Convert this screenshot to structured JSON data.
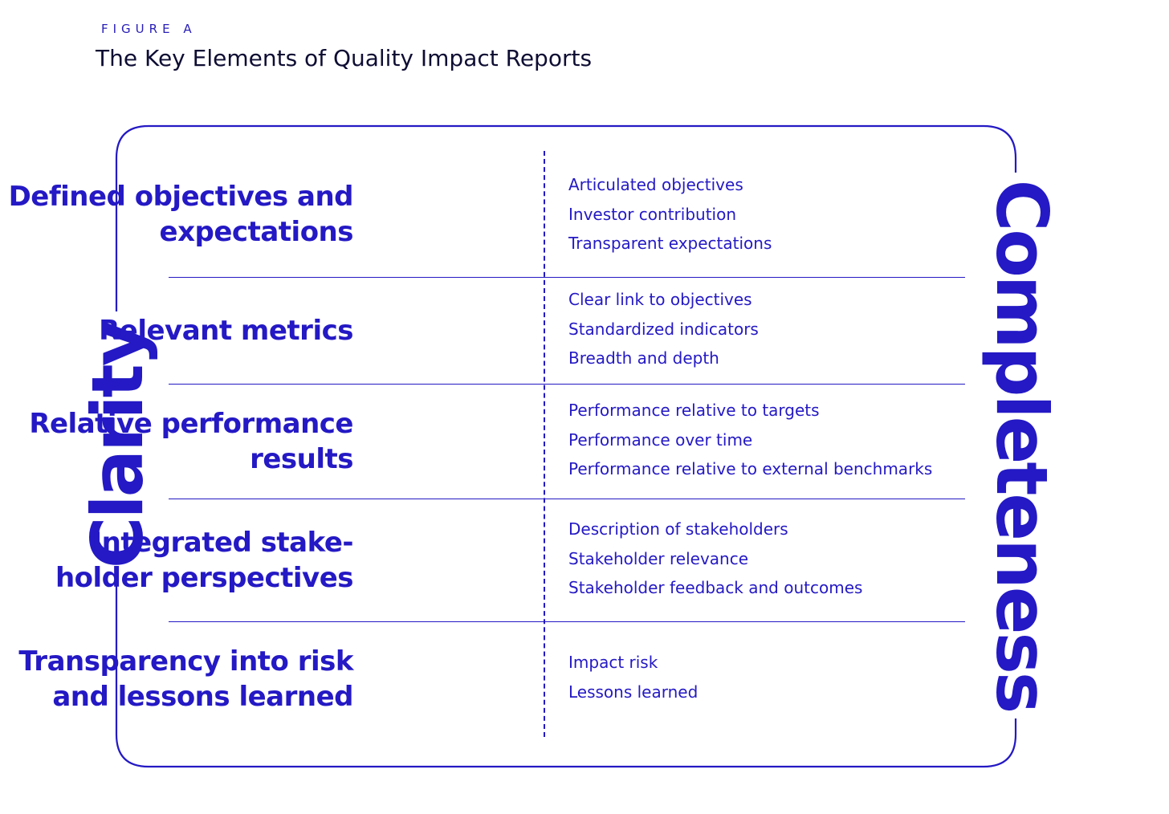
{
  "figure": {
    "label": "FIGURE A",
    "title": "The Key Elements of Quality Impact Reports"
  },
  "axes": {
    "left": "Clarity",
    "right": "Completeness"
  },
  "rows": [
    {
      "heading": "Defined objectives and expectations",
      "items": [
        "Articulated objectives",
        "Investor contribution",
        "Transparent expectations"
      ]
    },
    {
      "heading": "Relevant metrics",
      "items": [
        "Clear link to objectives",
        "Standardized indicators",
        "Breadth and depth"
      ]
    },
    {
      "heading": "Relative performance results",
      "items": [
        "Performance relative to targets",
        "Performance over time",
        "Performance relative to external benchmarks"
      ]
    },
    {
      "heading": "Integrated stake-holder perspectives",
      "items": [
        "Description of stakeholders",
        "Stakeholder relevance",
        "Stakeholder feedback and outcomes"
      ]
    },
    {
      "heading": "Transparency into risk and lessons learned",
      "items": [
        "Impact risk",
        "Lessons learned"
      ]
    }
  ],
  "colors": {
    "accent": "#2419c4",
    "title": "#0e0d33",
    "background": "#ffffff"
  }
}
